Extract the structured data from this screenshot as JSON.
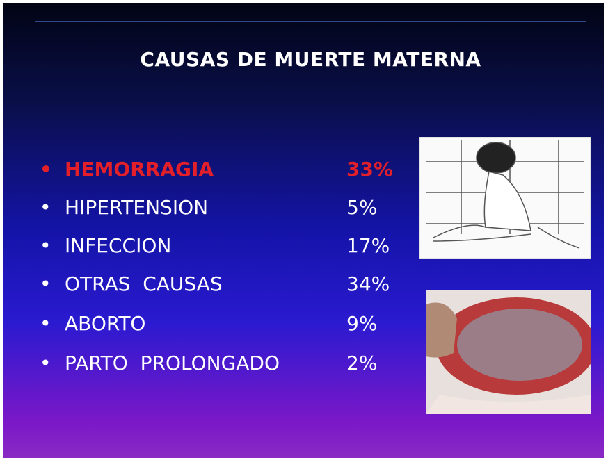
{
  "title": "CAUSAS DE MUERTE MATERNA",
  "items": [
    {
      "label": "HEMORRAGIA",
      "value": "33%",
      "color": "#e3202a"
    },
    {
      "label": "HIPERTENSION",
      "value": "5%",
      "color": "#ffffff"
    },
    {
      "label": "INFECCION",
      "value": "17%",
      "color": "#ffffff"
    },
    {
      "label": "OTRAS  CAUSAS",
      "value": "34%",
      "color": "#ffffff"
    },
    {
      "label": "ABORTO",
      "value": "9%",
      "color": "#ffffff"
    },
    {
      "label": "PARTO  PROLONGADO",
      "value": "2%",
      "color": "#ffffff"
    }
  ]
}
